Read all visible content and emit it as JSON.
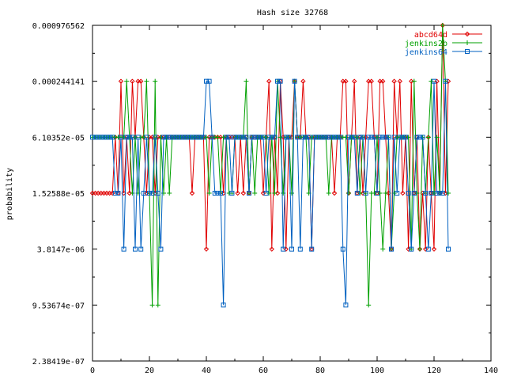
{
  "chart_data": {
    "type": "line",
    "title": "Hash size 32768",
    "xlabel": "",
    "ylabel": "probability",
    "y_scale": "log2",
    "xlim": [
      0,
      140
    ],
    "ylim": [
      2.38419e-07,
      0.000976562
    ],
    "x_ticks": [
      "0",
      "20",
      "40",
      "60",
      "80",
      "100",
      "120",
      "140"
    ],
    "x_tick_values": [
      0,
      20,
      40,
      60,
      80,
      100,
      120,
      140
    ],
    "y_ticks": [
      "2.38419e-07",
      "9.53674e-07",
      "3.8147e-06",
      "1.52588e-05",
      "6.10352e-05",
      "0.000244141",
      "0.000976562"
    ],
    "y_tick_values": [
      2.38419e-07,
      9.53674e-07,
      3.8147e-06,
      1.52588e-05,
      6.10352e-05,
      0.000244141,
      0.000976562
    ],
    "legend_position": "top-right",
    "series": [
      {
        "name": "abcd64d",
        "color": "#e00000",
        "marker": "diamond",
        "x": [
          0,
          1,
          2,
          3,
          4,
          5,
          6,
          7,
          8,
          9,
          10,
          11,
          12,
          13,
          14,
          15,
          16,
          17,
          18,
          19,
          20,
          21,
          22,
          23,
          24,
          25,
          26,
          27,
          28,
          29,
          30,
          31,
          32,
          33,
          34,
          35,
          36,
          37,
          38,
          39,
          40,
          41,
          42,
          43,
          44,
          45,
          46,
          47,
          48,
          49,
          50,
          51,
          52,
          53,
          54,
          55,
          56,
          57,
          58,
          59,
          60,
          61,
          62,
          63,
          64,
          65,
          66,
          67,
          68,
          69,
          70,
          71,
          72,
          73,
          74,
          75,
          76,
          77,
          78,
          79,
          80,
          81,
          82,
          83,
          84,
          85,
          86,
          87,
          88,
          89,
          90,
          91,
          92,
          93,
          94,
          95,
          96,
          97,
          98,
          99,
          100,
          101,
          102,
          103,
          104,
          105,
          106,
          107,
          108,
          109,
          110,
          111,
          112,
          113,
          114,
          115,
          116,
          117,
          118,
          119,
          120,
          121,
          122,
          123,
          124,
          125
        ],
        "values": [
          1.52588e-05,
          1.52588e-05,
          1.52588e-05,
          1.52588e-05,
          1.52588e-05,
          1.52588e-05,
          1.52588e-05,
          1.52588e-05,
          6.10352e-05,
          1.52588e-05,
          0.000244141,
          1.52588e-05,
          6.10352e-05,
          1.52588e-05,
          0.000244141,
          6.10352e-05,
          0.000244141,
          0.000244141,
          6.10352e-05,
          1.52588e-05,
          6.10352e-05,
          6.10352e-05,
          1.52588e-05,
          6.10352e-05,
          6.10352e-05,
          6.10352e-05,
          6.10352e-05,
          6.10352e-05,
          6.10352e-05,
          6.10352e-05,
          6.10352e-05,
          6.10352e-05,
          6.10352e-05,
          6.10352e-05,
          6.10352e-05,
          1.52588e-05,
          6.10352e-05,
          6.10352e-05,
          6.10352e-05,
          6.10352e-05,
          3.8147e-06,
          6.10352e-05,
          6.10352e-05,
          6.10352e-05,
          6.10352e-05,
          6.10352e-05,
          1.52588e-05,
          6.10352e-05,
          6.10352e-05,
          6.10352e-05,
          6.10352e-05,
          1.52588e-05,
          6.10352e-05,
          1.52588e-05,
          6.10352e-05,
          1.52588e-05,
          6.10352e-05,
          6.10352e-05,
          6.10352e-05,
          6.10352e-05,
          1.52588e-05,
          6.10352e-05,
          0.000244141,
          3.8147e-06,
          6.10352e-05,
          1.52588e-05,
          0.000244141,
          6.10352e-05,
          3.8147e-06,
          6.10352e-05,
          6.10352e-05,
          0.000244141,
          6.10352e-05,
          6.10352e-05,
          0.000244141,
          6.10352e-05,
          6.10352e-05,
          3.8147e-06,
          6.10352e-05,
          6.10352e-05,
          6.10352e-05,
          6.10352e-05,
          6.10352e-05,
          6.10352e-05,
          6.10352e-05,
          1.52588e-05,
          6.10352e-05,
          6.10352e-05,
          0.000244141,
          0.000244141,
          1.52588e-05,
          6.10352e-05,
          0.000244141,
          1.52588e-05,
          6.10352e-05,
          1.52588e-05,
          6.10352e-05,
          0.000244141,
          0.000244141,
          6.10352e-05,
          1.52588e-05,
          0.000244141,
          0.000244141,
          6.10352e-05,
          1.52588e-05,
          3.8147e-06,
          0.000244141,
          6.10352e-05,
          0.000244141,
          1.52588e-05,
          6.10352e-05,
          3.8147e-06,
          0.000244141,
          1.52588e-05,
          6.10352e-05,
          3.8147e-06,
          1.52588e-05,
          3.8147e-06,
          6.10352e-05,
          1.52588e-05,
          3.8147e-06,
          0.000244141,
          1.52588e-05,
          0.000976562,
          1.52588e-05,
          0.000244141
        ]
      },
      {
        "name": "jenkins2b",
        "color": "#00a000",
        "marker": "plus",
        "x": [
          0,
          1,
          2,
          3,
          4,
          5,
          6,
          7,
          8,
          9,
          10,
          11,
          12,
          13,
          14,
          15,
          16,
          17,
          18,
          19,
          20,
          21,
          22,
          23,
          24,
          25,
          26,
          27,
          28,
          29,
          30,
          31,
          32,
          33,
          34,
          35,
          36,
          37,
          38,
          39,
          40,
          41,
          42,
          43,
          44,
          45,
          46,
          47,
          48,
          49,
          50,
          51,
          52,
          53,
          54,
          55,
          56,
          57,
          58,
          59,
          60,
          61,
          62,
          63,
          64,
          65,
          66,
          67,
          68,
          69,
          70,
          71,
          72,
          73,
          74,
          75,
          76,
          77,
          78,
          79,
          80,
          81,
          82,
          83,
          84,
          85,
          86,
          87,
          88,
          89,
          90,
          91,
          92,
          93,
          94,
          95,
          96,
          97,
          98,
          99,
          100,
          101,
          102,
          103,
          104,
          105,
          106,
          107,
          108,
          109,
          110,
          111,
          112,
          113,
          114,
          115,
          116,
          117,
          118,
          119,
          120,
          121,
          122,
          123,
          124,
          125
        ],
        "values": [
          6.10352e-05,
          6.10352e-05,
          6.10352e-05,
          6.10352e-05,
          6.10352e-05,
          6.10352e-05,
          6.10352e-05,
          6.10352e-05,
          6.10352e-05,
          6.10352e-05,
          6.10352e-05,
          6.10352e-05,
          0.000244141,
          6.10352e-05,
          1.52588e-05,
          6.10352e-05,
          1.52588e-05,
          6.10352e-05,
          6.10352e-05,
          0.000244141,
          1.52588e-05,
          9.53674e-07,
          0.000244141,
          9.53674e-07,
          6.10352e-05,
          1.52588e-05,
          6.10352e-05,
          1.52588e-05,
          6.10352e-05,
          6.10352e-05,
          6.10352e-05,
          6.10352e-05,
          6.10352e-05,
          6.10352e-05,
          6.10352e-05,
          6.10352e-05,
          6.10352e-05,
          6.10352e-05,
          6.10352e-05,
          6.10352e-05,
          6.10352e-05,
          1.52588e-05,
          6.10352e-05,
          6.10352e-05,
          6.10352e-05,
          1.52588e-05,
          6.10352e-05,
          6.10352e-05,
          1.52588e-05,
          1.52588e-05,
          6.10352e-05,
          6.10352e-05,
          6.10352e-05,
          6.10352e-05,
          0.000244141,
          1.52588e-05,
          6.10352e-05,
          1.52588e-05,
          6.10352e-05,
          6.10352e-05,
          6.10352e-05,
          6.10352e-05,
          1.52588e-05,
          6.10352e-05,
          1.52588e-05,
          0.000244141,
          6.10352e-05,
          1.52588e-05,
          6.10352e-05,
          6.10352e-05,
          1.52588e-05,
          0.000244141,
          6.10352e-05,
          6.10352e-05,
          6.10352e-05,
          6.10352e-05,
          1.52588e-05,
          6.10352e-05,
          6.10352e-05,
          6.10352e-05,
          6.10352e-05,
          6.10352e-05,
          6.10352e-05,
          1.52588e-05,
          6.10352e-05,
          6.10352e-05,
          6.10352e-05,
          6.10352e-05,
          6.10352e-05,
          6.10352e-05,
          1.52588e-05,
          6.10352e-05,
          6.10352e-05,
          6.10352e-05,
          1.52588e-05,
          6.10352e-05,
          1.52588e-05,
          9.53674e-07,
          1.52588e-05,
          1.52588e-05,
          6.10352e-05,
          1.52588e-05,
          3.8147e-06,
          1.52588e-05,
          6.10352e-05,
          3.8147e-06,
          1.52588e-05,
          6.10352e-05,
          6.10352e-05,
          6.10352e-05,
          6.10352e-05,
          6.10352e-05,
          3.8147e-06,
          0.000244141,
          1.52588e-05,
          3.8147e-06,
          6.10352e-05,
          1.52588e-05,
          6.10352e-05,
          0.000244141,
          1.52588e-05,
          6.10352e-05,
          1.52588e-05,
          0.000976562,
          0.000244141,
          1.52588e-05
        ]
      },
      {
        "name": "jenkins64",
        "color": "#0060c0",
        "marker": "square",
        "x": [
          0,
          1,
          2,
          3,
          4,
          5,
          6,
          7,
          8,
          9,
          10,
          11,
          12,
          13,
          14,
          15,
          16,
          17,
          18,
          19,
          20,
          21,
          22,
          23,
          24,
          25,
          26,
          27,
          28,
          29,
          30,
          31,
          32,
          33,
          34,
          35,
          36,
          37,
          38,
          39,
          40,
          41,
          42,
          43,
          44,
          45,
          46,
          47,
          48,
          49,
          50,
          51,
          52,
          53,
          54,
          55,
          56,
          57,
          58,
          59,
          60,
          61,
          62,
          63,
          64,
          65,
          66,
          67,
          68,
          69,
          70,
          71,
          72,
          73,
          74,
          75,
          76,
          77,
          78,
          79,
          80,
          81,
          82,
          83,
          84,
          85,
          86,
          87,
          88,
          89,
          90,
          91,
          92,
          93,
          94,
          95,
          96,
          97,
          98,
          99,
          100,
          101,
          102,
          103,
          104,
          105,
          106,
          107,
          108,
          109,
          110,
          111,
          112,
          113,
          114,
          115,
          116,
          117,
          118,
          119,
          120,
          121,
          122,
          123,
          124,
          125
        ],
        "values": [
          6.10352e-05,
          6.10352e-05,
          6.10352e-05,
          6.10352e-05,
          6.10352e-05,
          6.10352e-05,
          6.10352e-05,
          6.10352e-05,
          1.52588e-05,
          1.52588e-05,
          6.10352e-05,
          3.8147e-06,
          6.10352e-05,
          6.10352e-05,
          6.10352e-05,
          3.8147e-06,
          6.10352e-05,
          3.8147e-06,
          1.52588e-05,
          6.10352e-05,
          1.52588e-05,
          1.52588e-05,
          6.10352e-05,
          1.52588e-05,
          3.8147e-06,
          6.10352e-05,
          6.10352e-05,
          6.10352e-05,
          6.10352e-05,
          6.10352e-05,
          6.10352e-05,
          6.10352e-05,
          6.10352e-05,
          6.10352e-05,
          6.10352e-05,
          6.10352e-05,
          6.10352e-05,
          6.10352e-05,
          6.10352e-05,
          6.10352e-05,
          0.000244141,
          0.000244141,
          6.10352e-05,
          1.52588e-05,
          1.52588e-05,
          1.52588e-05,
          9.53674e-07,
          6.10352e-05,
          6.10352e-05,
          1.52588e-05,
          6.10352e-05,
          6.10352e-05,
          6.10352e-05,
          6.10352e-05,
          6.10352e-05,
          1.52588e-05,
          6.10352e-05,
          6.10352e-05,
          6.10352e-05,
          6.10352e-05,
          6.10352e-05,
          1.52588e-05,
          6.10352e-05,
          6.10352e-05,
          6.10352e-05,
          0.000244141,
          0.000244141,
          3.8147e-06,
          6.10352e-05,
          6.10352e-05,
          3.8147e-06,
          0.000244141,
          6.10352e-05,
          3.8147e-06,
          6.10352e-05,
          6.10352e-05,
          6.10352e-05,
          3.8147e-06,
          6.10352e-05,
          6.10352e-05,
          6.10352e-05,
          6.10352e-05,
          6.10352e-05,
          6.10352e-05,
          6.10352e-05,
          6.10352e-05,
          6.10352e-05,
          6.10352e-05,
          3.8147e-06,
          9.53674e-07,
          6.10352e-05,
          6.10352e-05,
          6.10352e-05,
          1.52588e-05,
          6.10352e-05,
          6.10352e-05,
          1.52588e-05,
          6.10352e-05,
          6.10352e-05,
          6.10352e-05,
          1.52588e-05,
          6.10352e-05,
          6.10352e-05,
          6.10352e-05,
          6.10352e-05,
          3.8147e-06,
          6.10352e-05,
          1.52588e-05,
          6.10352e-05,
          6.10352e-05,
          6.10352e-05,
          1.52588e-05,
          3.8147e-06,
          1.52588e-05,
          6.10352e-05,
          6.10352e-05,
          6.10352e-05,
          1.52588e-05,
          3.8147e-06,
          1.52588e-05,
          0.000244141,
          1.52588e-05,
          1.52588e-05,
          1.52588e-05,
          0.000244141,
          3.8147e-06
        ]
      }
    ]
  }
}
